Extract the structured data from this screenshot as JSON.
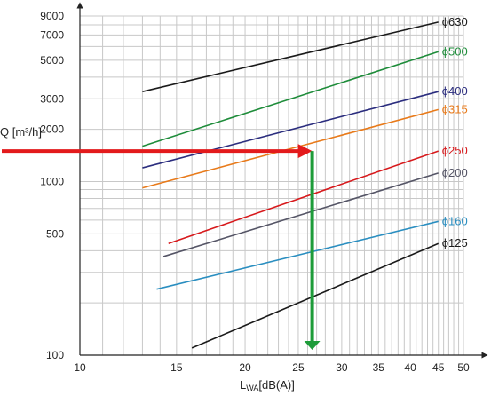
{
  "chart_data": {
    "type": "line",
    "xlabel": "LWA[dB(A)]",
    "ylabel": "Q [m³/h]",
    "xscale": "log",
    "yscale": "log",
    "xlim": [
      10,
      50
    ],
    "ylim": [
      100,
      9000
    ],
    "grid": true,
    "x_ticks": [
      10,
      15,
      20,
      25,
      30,
      35,
      40,
      45,
      50
    ],
    "y_ticks": [
      100,
      500,
      1000,
      2000,
      3000,
      5000,
      7000,
      9000
    ],
    "series": [
      {
        "name": "ϕ630",
        "color": "#1a1a1a",
        "x": [
          13,
          45
        ],
        "y": [
          3300,
          8300
        ]
      },
      {
        "name": "ϕ500",
        "color": "#1e8c3a",
        "x": [
          13,
          45
        ],
        "y": [
          1600,
          5600
        ]
      },
      {
        "name": "ϕ400",
        "color": "#2b2d7e",
        "x": [
          13,
          45
        ],
        "y": [
          1200,
          3300
        ]
      },
      {
        "name": "ϕ315",
        "color": "#e87a1a",
        "x": [
          13,
          45
        ],
        "y": [
          920,
          2600
        ]
      },
      {
        "name": "ϕ250",
        "color": "#d7191c",
        "x": [
          14.5,
          45
        ],
        "y": [
          440,
          1500
        ]
      },
      {
        "name": "ϕ200",
        "color": "#555566",
        "x": [
          14.2,
          45
        ],
        "y": [
          370,
          1120
        ]
      },
      {
        "name": "ϕ160",
        "color": "#2a8ec0",
        "x": [
          13.8,
          45
        ],
        "y": [
          240,
          590
        ]
      },
      {
        "name": "ϕ125",
        "color": "#1a1a1a",
        "x": [
          16,
          45
        ],
        "y": [
          110,
          440
        ]
      }
    ],
    "example": {
      "color_horizontal": "#e31a1c",
      "color_vertical": "#1e9c3a",
      "q": 1500,
      "lwa": 26.5
    }
  }
}
